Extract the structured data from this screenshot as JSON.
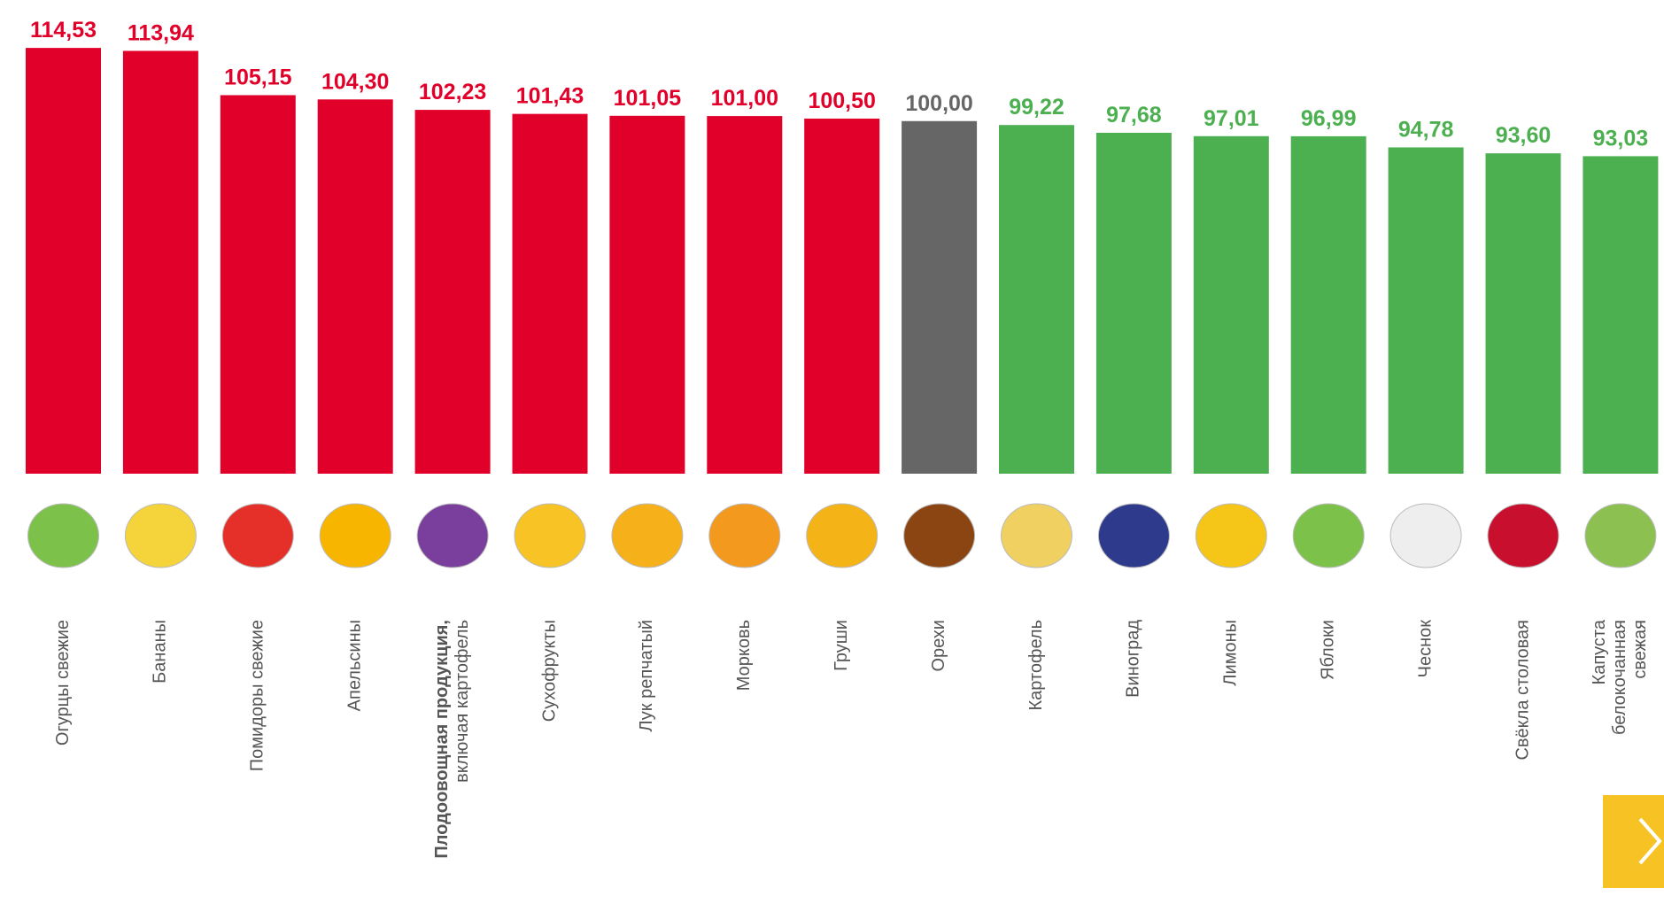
{
  "chart_data": {
    "type": "bar",
    "categories": [
      [
        "Огурцы свежие"
      ],
      [
        "Бананы"
      ],
      [
        "Помидоры свежие"
      ],
      [
        "Апельсины"
      ],
      [
        "Плодоовощная продукция,",
        "включая картофель"
      ],
      [
        "Сухофрукты"
      ],
      [
        "Лук репчатый"
      ],
      [
        "Морковь"
      ],
      [
        "Груши"
      ],
      [
        "Орехи"
      ],
      [
        "Картофель"
      ],
      [
        "Виноград"
      ],
      [
        "Лимоны"
      ],
      [
        "Яблоки"
      ],
      [
        "Чеснок"
      ],
      [
        "Свёкла столовая"
      ],
      [
        "Капуста",
        "белокочанная",
        "свежая"
      ]
    ],
    "emphasized_category": 4,
    "values": [
      114.53,
      113.94,
      105.15,
      104.3,
      102.23,
      101.43,
      101.05,
      101.0,
      100.5,
      100.0,
      99.22,
      97.68,
      97.01,
      96.99,
      94.78,
      93.6,
      93.03
    ],
    "value_labels": [
      "114,53",
      "113,94",
      "105,15",
      "104,30",
      "102,23",
      "101,43",
      "101,05",
      "101,00",
      "100,50",
      "100,00",
      "99,22",
      "97,68",
      "97,01",
      "96,99",
      "94,78",
      "93,60",
      "93,03"
    ],
    "colors": [
      "#e1002a",
      "#e1002a",
      "#e1002a",
      "#e1002a",
      "#e1002a",
      "#e1002a",
      "#e1002a",
      "#e1002a",
      "#e1002a",
      "#666666",
      "#4caf50",
      "#4caf50",
      "#4caf50",
      "#4caf50",
      "#4caf50",
      "#4caf50",
      "#4caf50"
    ],
    "ylim": [
      30,
      120
    ]
  }
}
